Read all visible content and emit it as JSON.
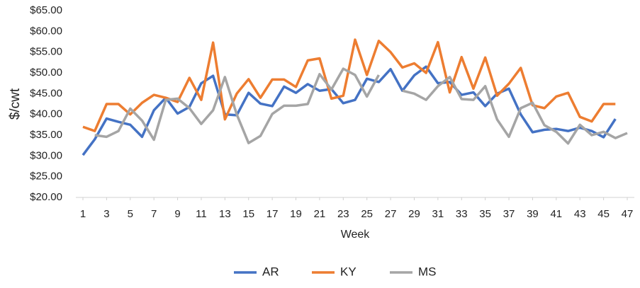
{
  "chart_data": {
    "type": "line",
    "y_label": "$/cwt",
    "x_label": "Week",
    "x": [
      1,
      2,
      3,
      4,
      5,
      6,
      7,
      8,
      9,
      10,
      11,
      12,
      13,
      14,
      15,
      16,
      17,
      18,
      19,
      20,
      21,
      22,
      23,
      24,
      25,
      26,
      27,
      28,
      29,
      30,
      31,
      32,
      33,
      34,
      35,
      36,
      37,
      38,
      39,
      40,
      41,
      42,
      43,
      44,
      45,
      46,
      47
    ],
    "xlim": [
      1,
      47
    ],
    "xticks": [
      1,
      3,
      5,
      7,
      9,
      11,
      13,
      15,
      17,
      19,
      21,
      23,
      25,
      27,
      29,
      31,
      33,
      35,
      37,
      39,
      41,
      43,
      45,
      47
    ],
    "ylim": [
      20,
      65
    ],
    "yticks": [
      {
        "value": 20,
        "label": "$20.00"
      },
      {
        "value": 25,
        "label": "$25.00"
      },
      {
        "value": 30,
        "label": "$30.00"
      },
      {
        "value": 35,
        "label": "$35.00"
      },
      {
        "value": 40,
        "label": "$40.00"
      },
      {
        "value": 45,
        "label": "$45.00"
      },
      {
        "value": 50,
        "label": "$50.00"
      },
      {
        "value": 55,
        "label": "$55.00"
      },
      {
        "value": 60,
        "label": "$60.00"
      },
      {
        "value": 65,
        "label": "$65.00"
      }
    ],
    "grid": false,
    "legend": "bottom",
    "series": [
      {
        "name": "AR",
        "color": "#4472c4",
        "values": [
          30.2,
          34,
          39,
          38.2,
          37.5,
          34.6,
          41,
          44,
          40.2,
          41.8,
          47.5,
          49.3,
          40,
          39.8,
          45.2,
          42.6,
          42,
          46.7,
          45.2,
          47.3,
          45.7,
          46.1,
          42.7,
          43.5,
          48.6,
          47.8,
          50.9,
          45.7,
          49.4,
          51.5,
          47.5,
          47.8,
          44.7,
          45.3,
          42,
          45,
          46.2,
          40,
          35.7,
          36.3,
          36.5,
          36,
          36.8,
          36,
          34.5,
          38.9,
          null
        ]
      },
      {
        "name": "KY",
        "color": "#ed7d31",
        "values": [
          37,
          36,
          42.5,
          42.5,
          40,
          42.8,
          44.7,
          44,
          43,
          48.8,
          43.5,
          57.3,
          38.8,
          45,
          48.5,
          44,
          48.4,
          48.4,
          46.6,
          53,
          53.5,
          43.8,
          44.5,
          58,
          49.5,
          57.7,
          55,
          51.3,
          52.3,
          50,
          57.4,
          45.3,
          53.8,
          46.2,
          53.7,
          44.5,
          47.4,
          51.2,
          42.2,
          41.5,
          44.3,
          45.2,
          39.4,
          38.3,
          42.5,
          42.5,
          null
        ]
      },
      {
        "name": "MS",
        "color": "#a5a5a5",
        "values": [
          null,
          35,
          34.6,
          36,
          41.4,
          38.5,
          33.9,
          43.5,
          43.8,
          41.5,
          37.7,
          41,
          49,
          40,
          33.1,
          34.8,
          40.1,
          42.1,
          42.1,
          42.5,
          49.7,
          46,
          51,
          49.5,
          44.3,
          49.5,
          null,
          45.7,
          45,
          43.5,
          46.8,
          49,
          43.7,
          43.5,
          46.8,
          38.8,
          34.6,
          41.5,
          42.8,
          37.4,
          35.8,
          33,
          37.5,
          35,
          35.8,
          34.3,
          35.5
        ]
      }
    ]
  }
}
